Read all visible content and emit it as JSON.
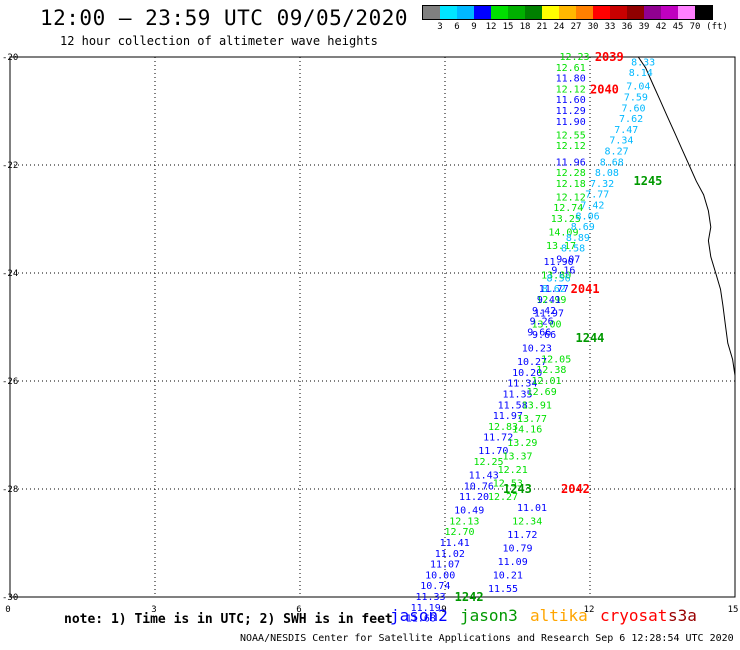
{
  "title": "12:00 — 23:59 UTC 09/05/2020",
  "subtitle": "12 hour collection of altimeter wave heights",
  "scale": {
    "unit": "(ft)",
    "colors": [
      "#808080",
      "#00e5ff",
      "#00b8ff",
      "#0000ff",
      "#00e000",
      "#00b000",
      "#008000",
      "#ffff00",
      "#ffb800",
      "#ff8000",
      "#ff0000",
      "#c80000",
      "#900000",
      "#900090",
      "#c000c0",
      "#ff80ff",
      "#000000"
    ],
    "ticks": [
      "3",
      "6",
      "9",
      "12",
      "15",
      "18",
      "21",
      "24",
      "27",
      "30",
      "33",
      "36",
      "39",
      "42",
      "45",
      "70"
    ]
  },
  "axes": {
    "x_ticks": [
      "0",
      "3",
      "6",
      "9",
      "12",
      "15"
    ],
    "y_ticks": [
      "-20",
      "-22",
      "-24",
      "-26",
      "-28",
      "-30"
    ],
    "grid": "dotted"
  },
  "chart_data": {
    "type": "scatter",
    "xlim": [
      0,
      15
    ],
    "ylim": [
      -30,
      -20
    ],
    "passes": [
      {
        "label": "2039",
        "satellite": "cryosat",
        "label_pos": [
          12.1,
          -20.0
        ],
        "points": [
          [
            11.68,
            -20.0,
            "12.23"
          ],
          [
            11.6,
            -20.2,
            "12.61"
          ],
          [
            11.6,
            -20.4,
            "11.80"
          ],
          [
            11.6,
            -20.6,
            "12.12"
          ],
          [
            11.6,
            -20.8,
            "11.60"
          ],
          [
            11.6,
            -21.0,
            "11.29"
          ],
          [
            11.6,
            -21.2,
            "11.90"
          ],
          [
            11.6,
            -21.45,
            "12.55"
          ],
          [
            11.6,
            -21.65,
            "12.12"
          ],
          [
            11.6,
            -21.95,
            "11.96"
          ],
          [
            11.6,
            -22.15,
            "12.28"
          ],
          [
            11.6,
            -22.35,
            "12.18"
          ],
          [
            11.6,
            -22.6,
            "12.12"
          ],
          [
            11.55,
            -22.8,
            "12.74"
          ],
          [
            11.5,
            -23.0,
            "13.25"
          ],
          [
            11.45,
            -23.25,
            "14.09"
          ],
          [
            11.4,
            -23.5,
            "13.17"
          ],
          [
            11.35,
            -23.8,
            "11.90"
          ],
          [
            11.3,
            -24.05,
            "13.80"
          ],
          [
            11.25,
            -24.3,
            "11.77"
          ],
          [
            11.2,
            -24.5,
            "12.99"
          ],
          [
            11.15,
            -24.75,
            "11.97"
          ],
          [
            11.1,
            -24.95,
            "13.00"
          ],
          [
            11.05,
            -25.15,
            "9.66"
          ]
        ]
      },
      {
        "label": "2040",
        "satellite": "cryosat",
        "label_pos": [
          12.0,
          -20.6
        ],
        "points": [
          [
            13.1,
            -20.1,
            "8.33"
          ],
          [
            13.05,
            -20.3,
            "8.14"
          ],
          [
            13.0,
            -20.55,
            "7.04"
          ],
          [
            12.95,
            -20.75,
            "7.59"
          ],
          [
            12.9,
            -20.95,
            "7.60"
          ],
          [
            12.85,
            -21.15,
            "7.62"
          ],
          [
            12.75,
            -21.35,
            "7.47"
          ],
          [
            12.65,
            -21.55,
            "7.34"
          ],
          [
            12.55,
            -21.75,
            "8.27"
          ],
          [
            12.45,
            -21.95,
            "8.68"
          ],
          [
            12.35,
            -22.15,
            "8.08"
          ],
          [
            12.25,
            -22.35,
            "7.32"
          ],
          [
            12.15,
            -22.55,
            "7.77"
          ],
          [
            12.05,
            -22.75,
            "7.42"
          ],
          [
            11.95,
            -22.95,
            "8.06"
          ],
          [
            11.85,
            -23.15,
            "8.69"
          ],
          [
            11.75,
            -23.35,
            "8.89"
          ],
          [
            11.65,
            -23.55,
            "8.58"
          ],
          [
            11.55,
            -23.75,
            "9.07"
          ],
          [
            11.45,
            -23.95,
            "9.16"
          ],
          [
            11.35,
            -24.1,
            "8.56"
          ],
          [
            11.25,
            -24.3,
            "8.62"
          ],
          [
            11.15,
            -24.5,
            "9.41"
          ],
          [
            11.05,
            -24.7,
            "9.42"
          ],
          [
            11.0,
            -24.9,
            "9.26"
          ],
          [
            10.95,
            -25.1,
            "9.66"
          ]
        ]
      },
      {
        "label": "1245",
        "satellite": "jason3",
        "label_pos": [
          12.9,
          -22.3
        ],
        "points": []
      },
      {
        "label": "2041",
        "satellite": "cryosat",
        "label_pos": [
          11.6,
          -24.3
        ],
        "points": [
          [
            10.9,
            -25.4,
            "10.23"
          ],
          [
            10.8,
            -25.65,
            "10.27"
          ],
          [
            10.7,
            -25.85,
            "10.20"
          ],
          [
            10.6,
            -26.05,
            "11.34"
          ],
          [
            10.5,
            -26.25,
            "11.35"
          ],
          [
            10.4,
            -26.45,
            "11.58"
          ],
          [
            10.3,
            -26.65,
            "11.97"
          ],
          [
            10.2,
            -26.85,
            "12.83"
          ],
          [
            10.1,
            -27.05,
            "11.72"
          ],
          [
            10.0,
            -27.3,
            "11.70"
          ],
          [
            9.9,
            -27.5,
            "12.25"
          ],
          [
            9.8,
            -27.75,
            "11.43"
          ],
          [
            9.7,
            -27.95,
            "10.76"
          ],
          [
            9.6,
            -28.15,
            "11.20"
          ],
          [
            9.5,
            -28.4,
            "10.49"
          ],
          [
            9.4,
            -28.6,
            "12.13"
          ],
          [
            9.3,
            -28.8,
            "12.70"
          ],
          [
            9.2,
            -29.0,
            "11.41"
          ],
          [
            9.1,
            -29.2,
            "11.02"
          ],
          [
            9.0,
            -29.4,
            "11.07"
          ],
          [
            8.9,
            -29.6,
            "10.00"
          ],
          [
            8.8,
            -29.8,
            "10.74"
          ],
          [
            8.7,
            -30.0,
            "11.33"
          ],
          [
            8.6,
            -30.2,
            "11.19"
          ],
          [
            8.5,
            -30.4,
            "11.68"
          ]
        ]
      },
      {
        "label": "1244",
        "satellite": "jason3",
        "label_pos": [
          11.7,
          -25.2
        ],
        "points": [
          [
            11.3,
            -25.6,
            "12.05"
          ],
          [
            11.2,
            -25.8,
            "12.38"
          ],
          [
            11.1,
            -26.0,
            "12.01"
          ],
          [
            11.0,
            -26.2,
            "12.69"
          ],
          [
            10.9,
            -26.45,
            "13.91"
          ],
          [
            10.8,
            -26.7,
            "13.77"
          ],
          [
            10.7,
            -26.9,
            "14.16"
          ],
          [
            10.6,
            -27.15,
            "13.29"
          ],
          [
            10.5,
            -27.4,
            "13.37"
          ],
          [
            10.4,
            -27.65,
            "12.21"
          ],
          [
            10.3,
            -27.9,
            "12.53"
          ],
          [
            10.2,
            -28.15,
            "12.27"
          ]
        ]
      },
      {
        "label": "2042",
        "satellite": "cryosat",
        "label_pos": [
          11.4,
          -28.0
        ],
        "points": [
          [
            10.8,
            -28.35,
            "11.01"
          ],
          [
            10.7,
            -28.6,
            "12.34"
          ],
          [
            10.6,
            -28.85,
            "11.72"
          ],
          [
            10.5,
            -29.1,
            "10.79"
          ],
          [
            10.4,
            -29.35,
            "11.09"
          ],
          [
            10.3,
            -29.6,
            "10.21"
          ],
          [
            10.2,
            -29.85,
            "11.55"
          ]
        ]
      },
      {
        "label": "1243",
        "satellite": "jason3",
        "label_pos": [
          10.2,
          -28.0
        ],
        "points": []
      },
      {
        "label": "1242",
        "satellite": "jason3",
        "label_pos": [
          9.2,
          -30.0
        ],
        "points": []
      }
    ]
  },
  "note": "note: 1) Time is in UTC; 2) SWH is in feet",
  "satellites": [
    {
      "name": "jason2",
      "color": "#0000ff"
    },
    {
      "name": "jason3",
      "color": "#009900"
    },
    {
      "name": "altika",
      "color": "#ffa500"
    },
    {
      "name": "cryosat",
      "color": "#ff0000"
    },
    {
      "name": "s3a",
      "color": "#990000"
    }
  ],
  "footer": "NOAA/NESDIS Center for Satellite Applications and Research   Sep  6 12:28:54 UTC 2020"
}
